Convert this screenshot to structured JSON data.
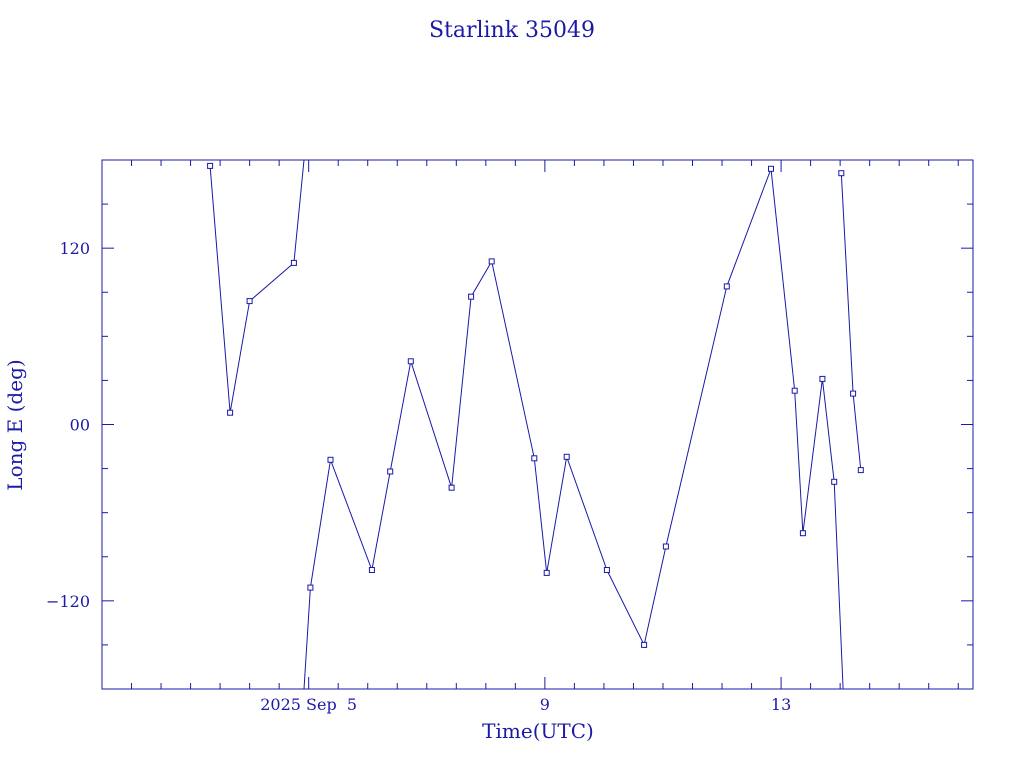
{
  "chart_data": {
    "type": "line",
    "title": "Starlink 35049",
    "xlabel": "Time(UTC)",
    "ylabel": "Long E (deg)",
    "x_unit": "days (Sep 2025, UTC)",
    "xlim": [
      1.5,
      16.25
    ],
    "ylim": [
      -180,
      180
    ],
    "x_tick_labels": [
      {
        "x": 5,
        "label": "2025 Sep  5"
      },
      {
        "x": 9,
        "label": "9"
      },
      {
        "x": 13,
        "label": "13"
      }
    ],
    "y_tick_labels": [
      {
        "y": 120,
        "label": "120"
      },
      {
        "y": 0,
        "label": "00"
      },
      {
        "y": -120,
        "label": "−120"
      }
    ],
    "x_minor_step": 0.5,
    "y_minor_step": 30,
    "grid": false,
    "legend": "none",
    "marker": "square",
    "color": "#1a1aa6",
    "series": [
      {
        "points": [
          {
            "x": 3.33,
            "y": 176
          },
          {
            "x": 3.67,
            "y": 8
          },
          {
            "x": 4.0,
            "y": 84
          },
          {
            "x": 4.75,
            "y": 110
          },
          {
            "x": 4.92,
            "y": 180,
            "marker": false
          }
        ]
      },
      {
        "points": [
          {
            "x": 4.92,
            "y": -180,
            "marker": false
          },
          {
            "x": 5.03,
            "y": -111
          },
          {
            "x": 5.37,
            "y": -24
          },
          {
            "x": 6.07,
            "y": -99
          },
          {
            "x": 6.38,
            "y": -32
          },
          {
            "x": 6.73,
            "y": 43
          },
          {
            "x": 7.42,
            "y": -43
          },
          {
            "x": 7.75,
            "y": 87
          },
          {
            "x": 8.1,
            "y": 111
          },
          {
            "x": 8.82,
            "y": -23
          },
          {
            "x": 9.03,
            "y": -101
          },
          {
            "x": 9.37,
            "y": -22
          },
          {
            "x": 10.05,
            "y": -99
          },
          {
            "x": 10.68,
            "y": -150
          },
          {
            "x": 11.05,
            "y": -83
          },
          {
            "x": 12.08,
            "y": 94
          },
          {
            "x": 12.83,
            "y": 174
          },
          {
            "x": 13.23,
            "y": 23
          },
          {
            "x": 13.37,
            "y": -74
          },
          {
            "x": 13.7,
            "y": 31
          },
          {
            "x": 13.9,
            "y": -39
          },
          {
            "x": 14.05,
            "y": -180,
            "marker": false
          }
        ]
      },
      {
        "points": [
          {
            "x": 14.02,
            "y": 171
          },
          {
            "x": 14.22,
            "y": 21
          },
          {
            "x": 14.35,
            "y": -31
          }
        ]
      }
    ]
  }
}
